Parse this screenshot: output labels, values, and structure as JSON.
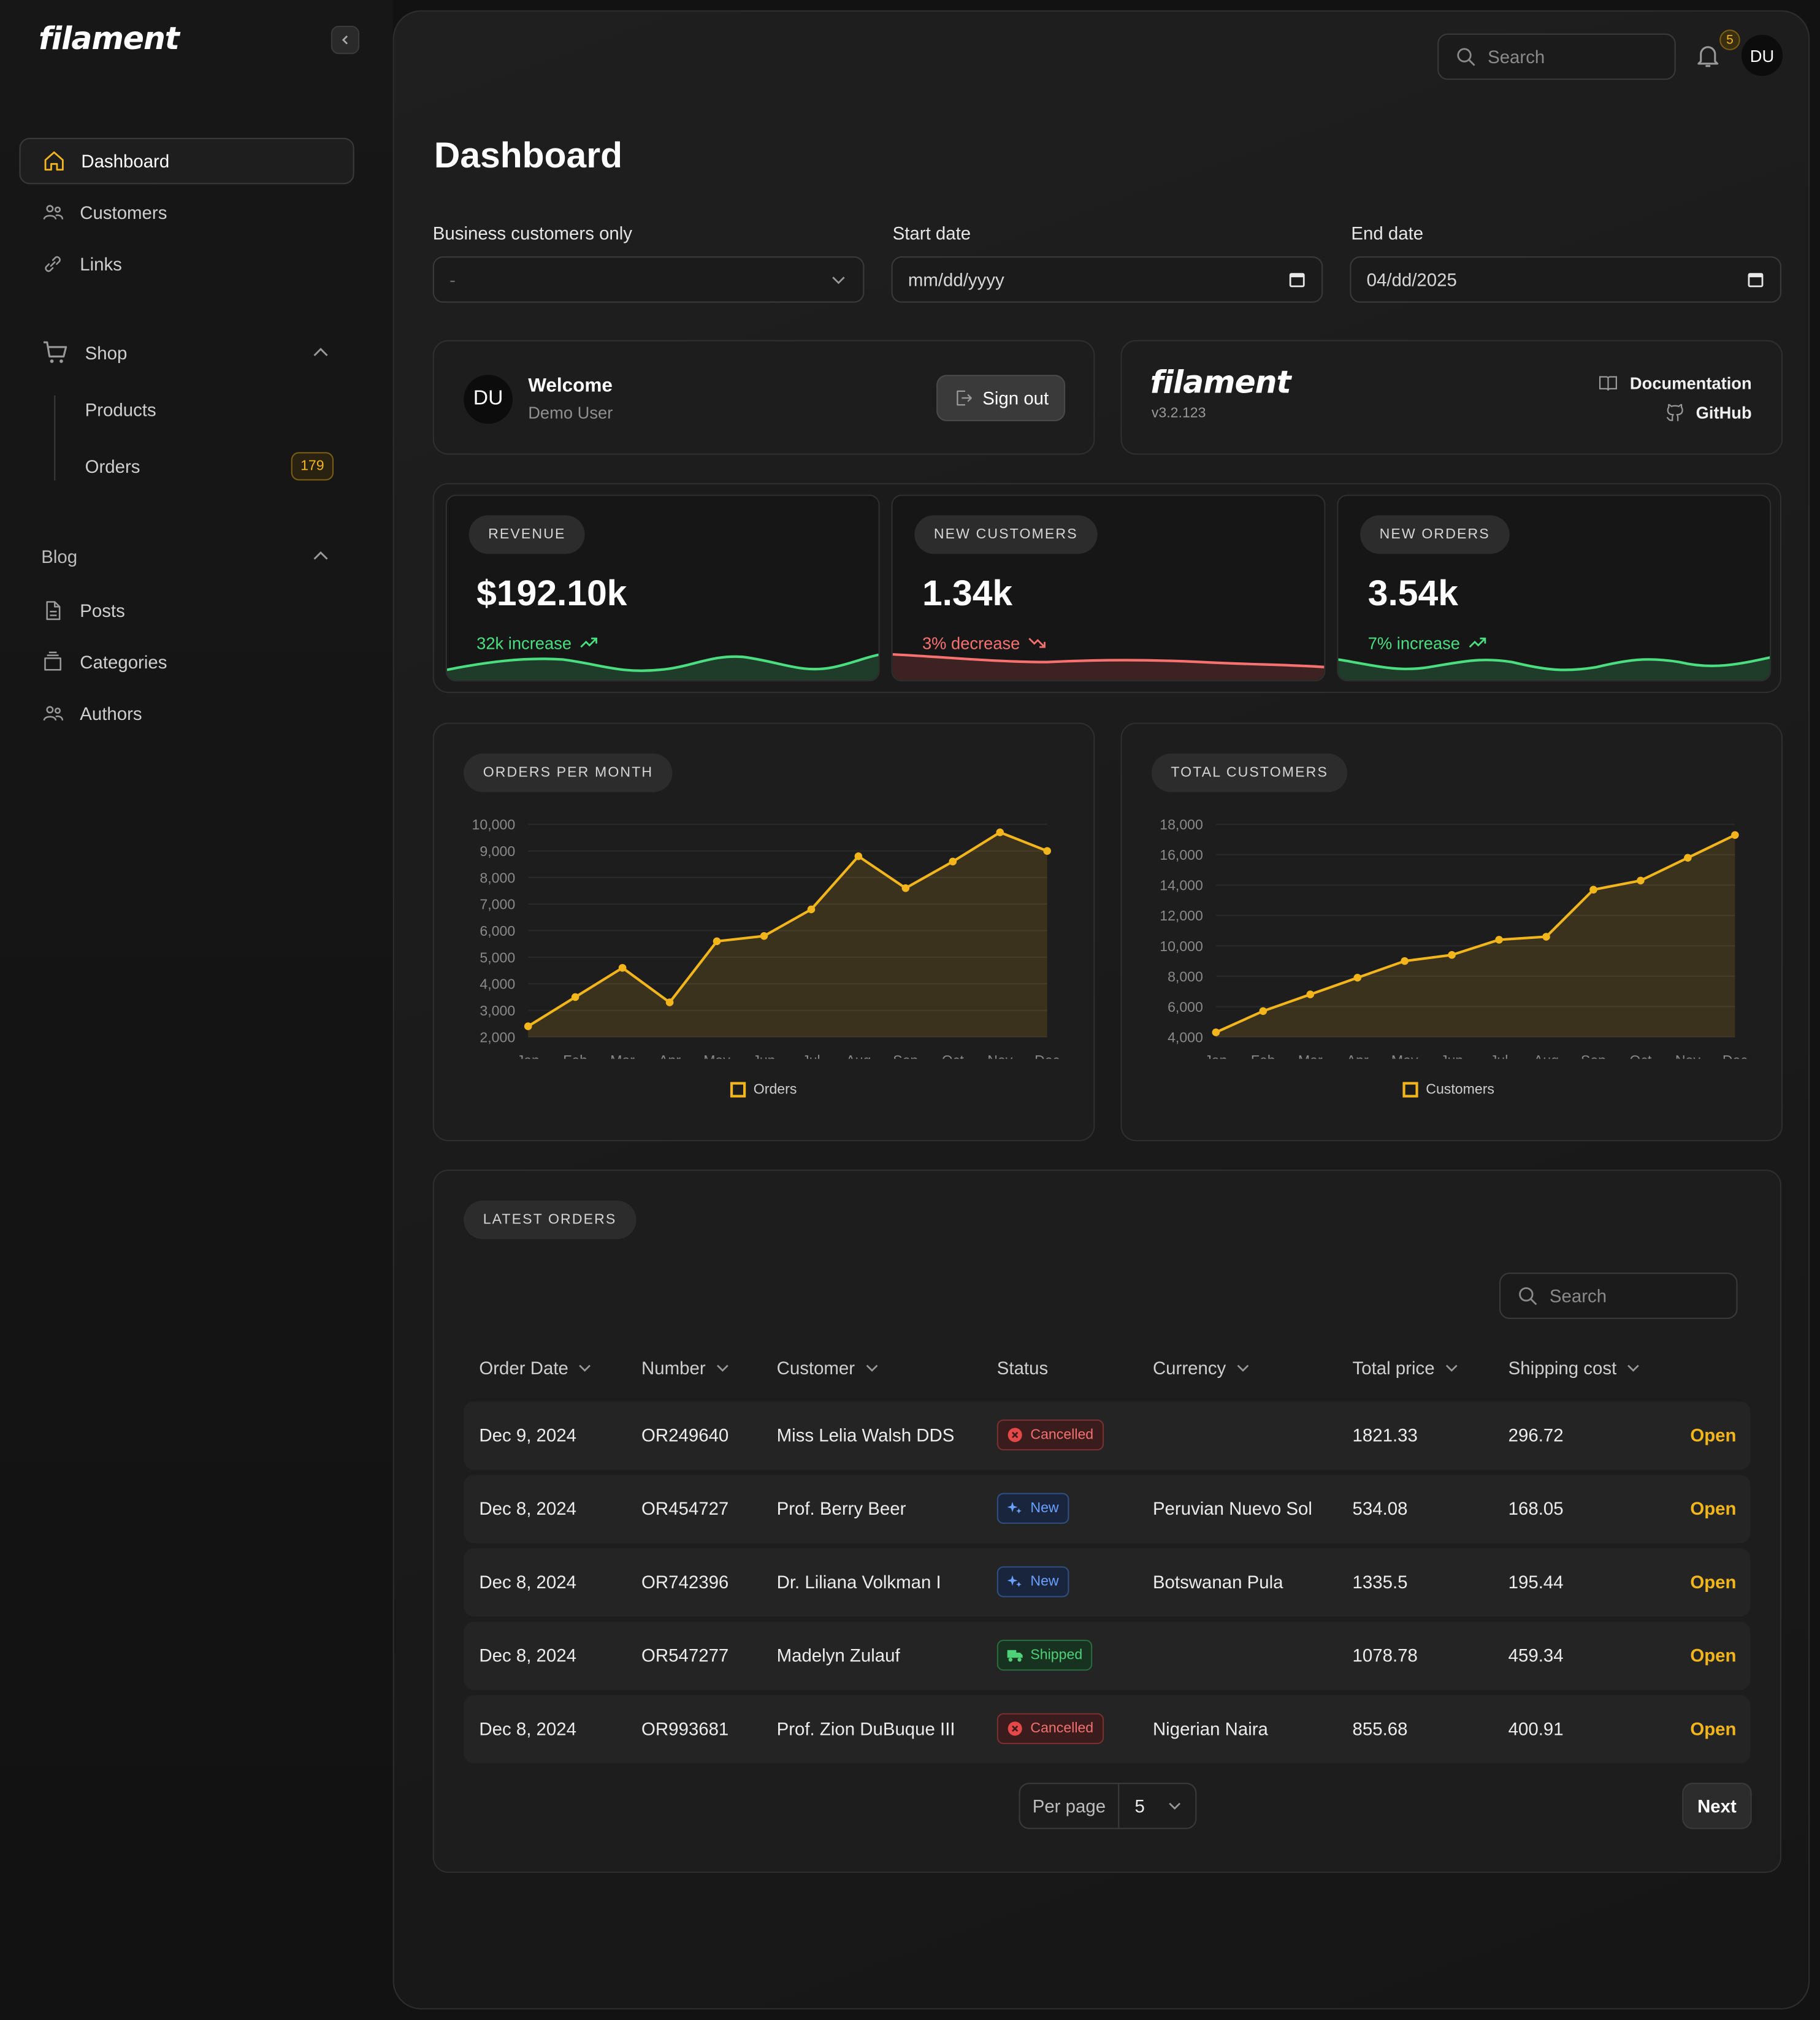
{
  "app": {
    "logo": "filament"
  },
  "sidebar": {
    "items": [
      {
        "label": "Dashboard"
      },
      {
        "label": "Customers"
      },
      {
        "label": "Links"
      }
    ],
    "shop": {
      "label": "Shop",
      "products": "Products",
      "orders": "Orders",
      "orders_badge": "179"
    },
    "blog": {
      "label": "Blog",
      "posts": "Posts",
      "categories": "Categories",
      "authors": "Authors"
    }
  },
  "topbar": {
    "search_placeholder": "Search",
    "notifications_count": "5",
    "avatar": "DU"
  },
  "page": {
    "title": "Dashboard"
  },
  "filters": {
    "business": {
      "label": "Business customers only",
      "value": "-"
    },
    "start": {
      "label": "Start date",
      "value": "mm/dd/yyyy"
    },
    "end": {
      "label": "End date",
      "value": "04/dd/2025"
    }
  },
  "welcome": {
    "avatar": "DU",
    "title": "Welcome",
    "user": "Demo User",
    "signout": "Sign out"
  },
  "filament_info": {
    "logo": "filament",
    "version": "v3.2.123",
    "docs": "Documentation",
    "github": "GitHub"
  },
  "stats": [
    {
      "label": "REVENUE",
      "value": "$192.10k",
      "desc": "32k increase",
      "trend": "up",
      "color": "#4ade80"
    },
    {
      "label": "NEW CUSTOMERS",
      "value": "1.34k",
      "desc": "3% decrease",
      "trend": "down",
      "color": "#f87171"
    },
    {
      "label": "NEW ORDERS",
      "value": "3.54k",
      "desc": "7% increase",
      "trend": "up",
      "color": "#4ade80"
    }
  ],
  "chart_data": [
    {
      "type": "line",
      "title": "ORDERS PER MONTH",
      "categories": [
        "Jan",
        "Feb",
        "Mar",
        "Apr",
        "May",
        "Jun",
        "Jul",
        "Aug",
        "Sep",
        "Oct",
        "Nov",
        "Dec"
      ],
      "series": [
        {
          "name": "Orders",
          "values": [
            2400,
            3500,
            4600,
            3300,
            5600,
            5800,
            6800,
            8800,
            7600,
            8600,
            9700,
            9000
          ]
        }
      ],
      "ylim": [
        2000,
        10000
      ],
      "yticks": [
        "10,000",
        "9,000",
        "8,000",
        "7,000",
        "6,000",
        "5,000",
        "4,000",
        "3,000",
        "2,000"
      ],
      "color": "#f2b51b"
    },
    {
      "type": "line",
      "title": "TOTAL CUSTOMERS",
      "categories": [
        "Jan",
        "Feb",
        "Mar",
        "Apr",
        "May",
        "Jun",
        "Jul",
        "Aug",
        "Sep",
        "Oct",
        "Nov",
        "Dec"
      ],
      "series": [
        {
          "name": "Customers",
          "values": [
            4300,
            5700,
            6800,
            7900,
            9000,
            9400,
            10400,
            10600,
            13700,
            14300,
            15800,
            17300
          ]
        }
      ],
      "ylim": [
        4000,
        18000
      ],
      "yticks": [
        "18,000",
        "16,000",
        "14,000",
        "12,000",
        "10,000",
        "8,000",
        "6,000",
        "4,000"
      ],
      "color": "#f2b51b"
    }
  ],
  "orders": {
    "title": "LATEST ORDERS",
    "search_placeholder": "Search",
    "columns": [
      "Order Date",
      "Number",
      "Customer",
      "Status",
      "Currency",
      "Total price",
      "Shipping cost"
    ],
    "rows": [
      {
        "date": "Dec 9, 2024",
        "number": "OR249640",
        "customer": "Miss Lelia Walsh DDS",
        "status": "Cancelled",
        "currency": "",
        "total": "1821.33",
        "shipping": "296.72",
        "action": "Open"
      },
      {
        "date": "Dec 8, 2024",
        "number": "OR454727",
        "customer": "Prof. Berry Beer",
        "status": "New",
        "currency": "Peruvian Nuevo Sol",
        "total": "534.08",
        "shipping": "168.05",
        "action": "Open"
      },
      {
        "date": "Dec 8, 2024",
        "number": "OR742396",
        "customer": "Dr. Liliana Volkman I",
        "status": "New",
        "currency": "Botswanan Pula",
        "total": "1335.5",
        "shipping": "195.44",
        "action": "Open"
      },
      {
        "date": "Dec 8, 2024",
        "number": "OR547277",
        "customer": "Madelyn Zulauf",
        "status": "Shipped",
        "currency": "",
        "total": "1078.78",
        "shipping": "459.34",
        "action": "Open"
      },
      {
        "date": "Dec 8, 2024",
        "number": "OR993681",
        "customer": "Prof. Zion DuBuque III",
        "status": "Cancelled",
        "currency": "Nigerian Naira",
        "total": "855.68",
        "shipping": "400.91",
        "action": "Open"
      }
    ],
    "per_page_label": "Per page",
    "per_page_value": "5",
    "next": "Next"
  }
}
